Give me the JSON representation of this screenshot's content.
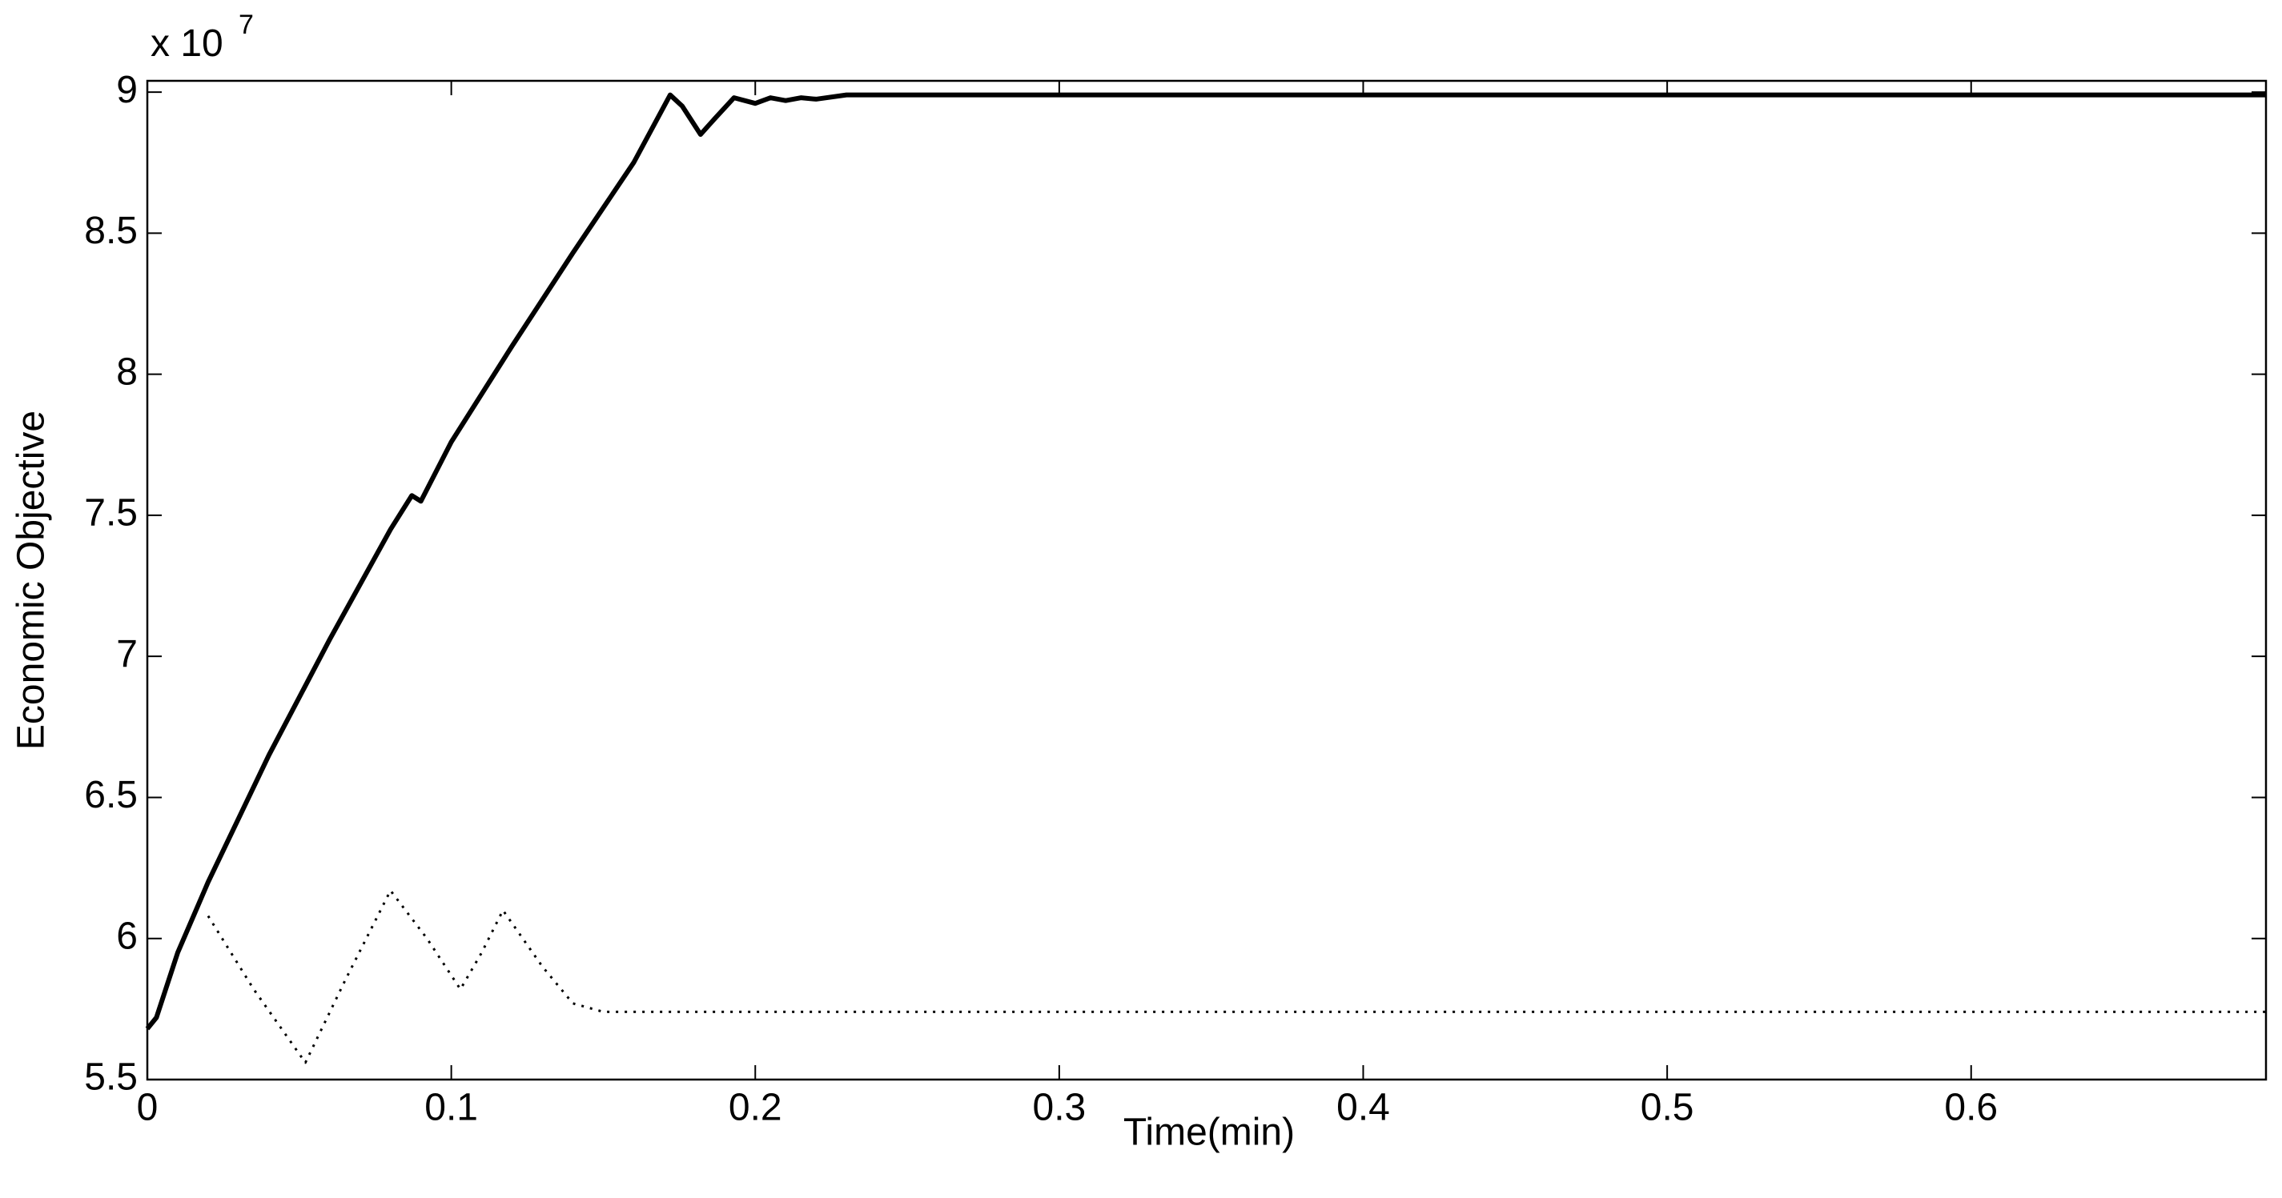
{
  "chart_data": {
    "type": "line",
    "x_label": "Time(min)",
    "y_label": "Economic Objective",
    "y_multiplier": "x 10",
    "y_multiplier_exponent": "7",
    "xlim": [
      0,
      0.697
    ],
    "xticks": [
      0,
      0.1,
      0.2,
      0.3,
      0.4,
      0.5,
      0.6
    ],
    "ylim": [
      5.5,
      9.04
    ],
    "yticks": [
      5.5,
      6,
      6.5,
      7,
      7.5,
      8,
      8.5,
      9
    ],
    "grid": false,
    "series": [
      {
        "color": "#000000",
        "style": "solid",
        "x": [
          0,
          0.003,
          0.01,
          0.02,
          0.04,
          0.06,
          0.08,
          0.087,
          0.09,
          0.1,
          0.12,
          0.14,
          0.16,
          0.172,
          0.176,
          0.182,
          0.187,
          0.193,
          0.2,
          0.205,
          0.21,
          0.215,
          0.22,
          0.23,
          0.697
        ],
        "values": [
          5.68,
          5.72,
          5.95,
          6.2,
          6.65,
          7.06,
          7.45,
          7.57,
          7.55,
          7.76,
          8.1,
          8.43,
          8.75,
          8.99,
          8.95,
          8.85,
          8.91,
          8.98,
          8.96,
          8.98,
          8.97,
          8.98,
          8.975,
          8.99,
          8.99
        ]
      },
      {
        "color": "#000000",
        "style": "dotted",
        "x": [
          0.02,
          0.035,
          0.052,
          0.065,
          0.08,
          0.092,
          0.103,
          0.11,
          0.117,
          0.13,
          0.14,
          0.15,
          0.697
        ],
        "values": [
          6.08,
          5.82,
          5.56,
          5.85,
          6.17,
          6.0,
          5.82,
          5.95,
          6.1,
          5.9,
          5.77,
          5.74,
          5.74
        ]
      }
    ]
  }
}
